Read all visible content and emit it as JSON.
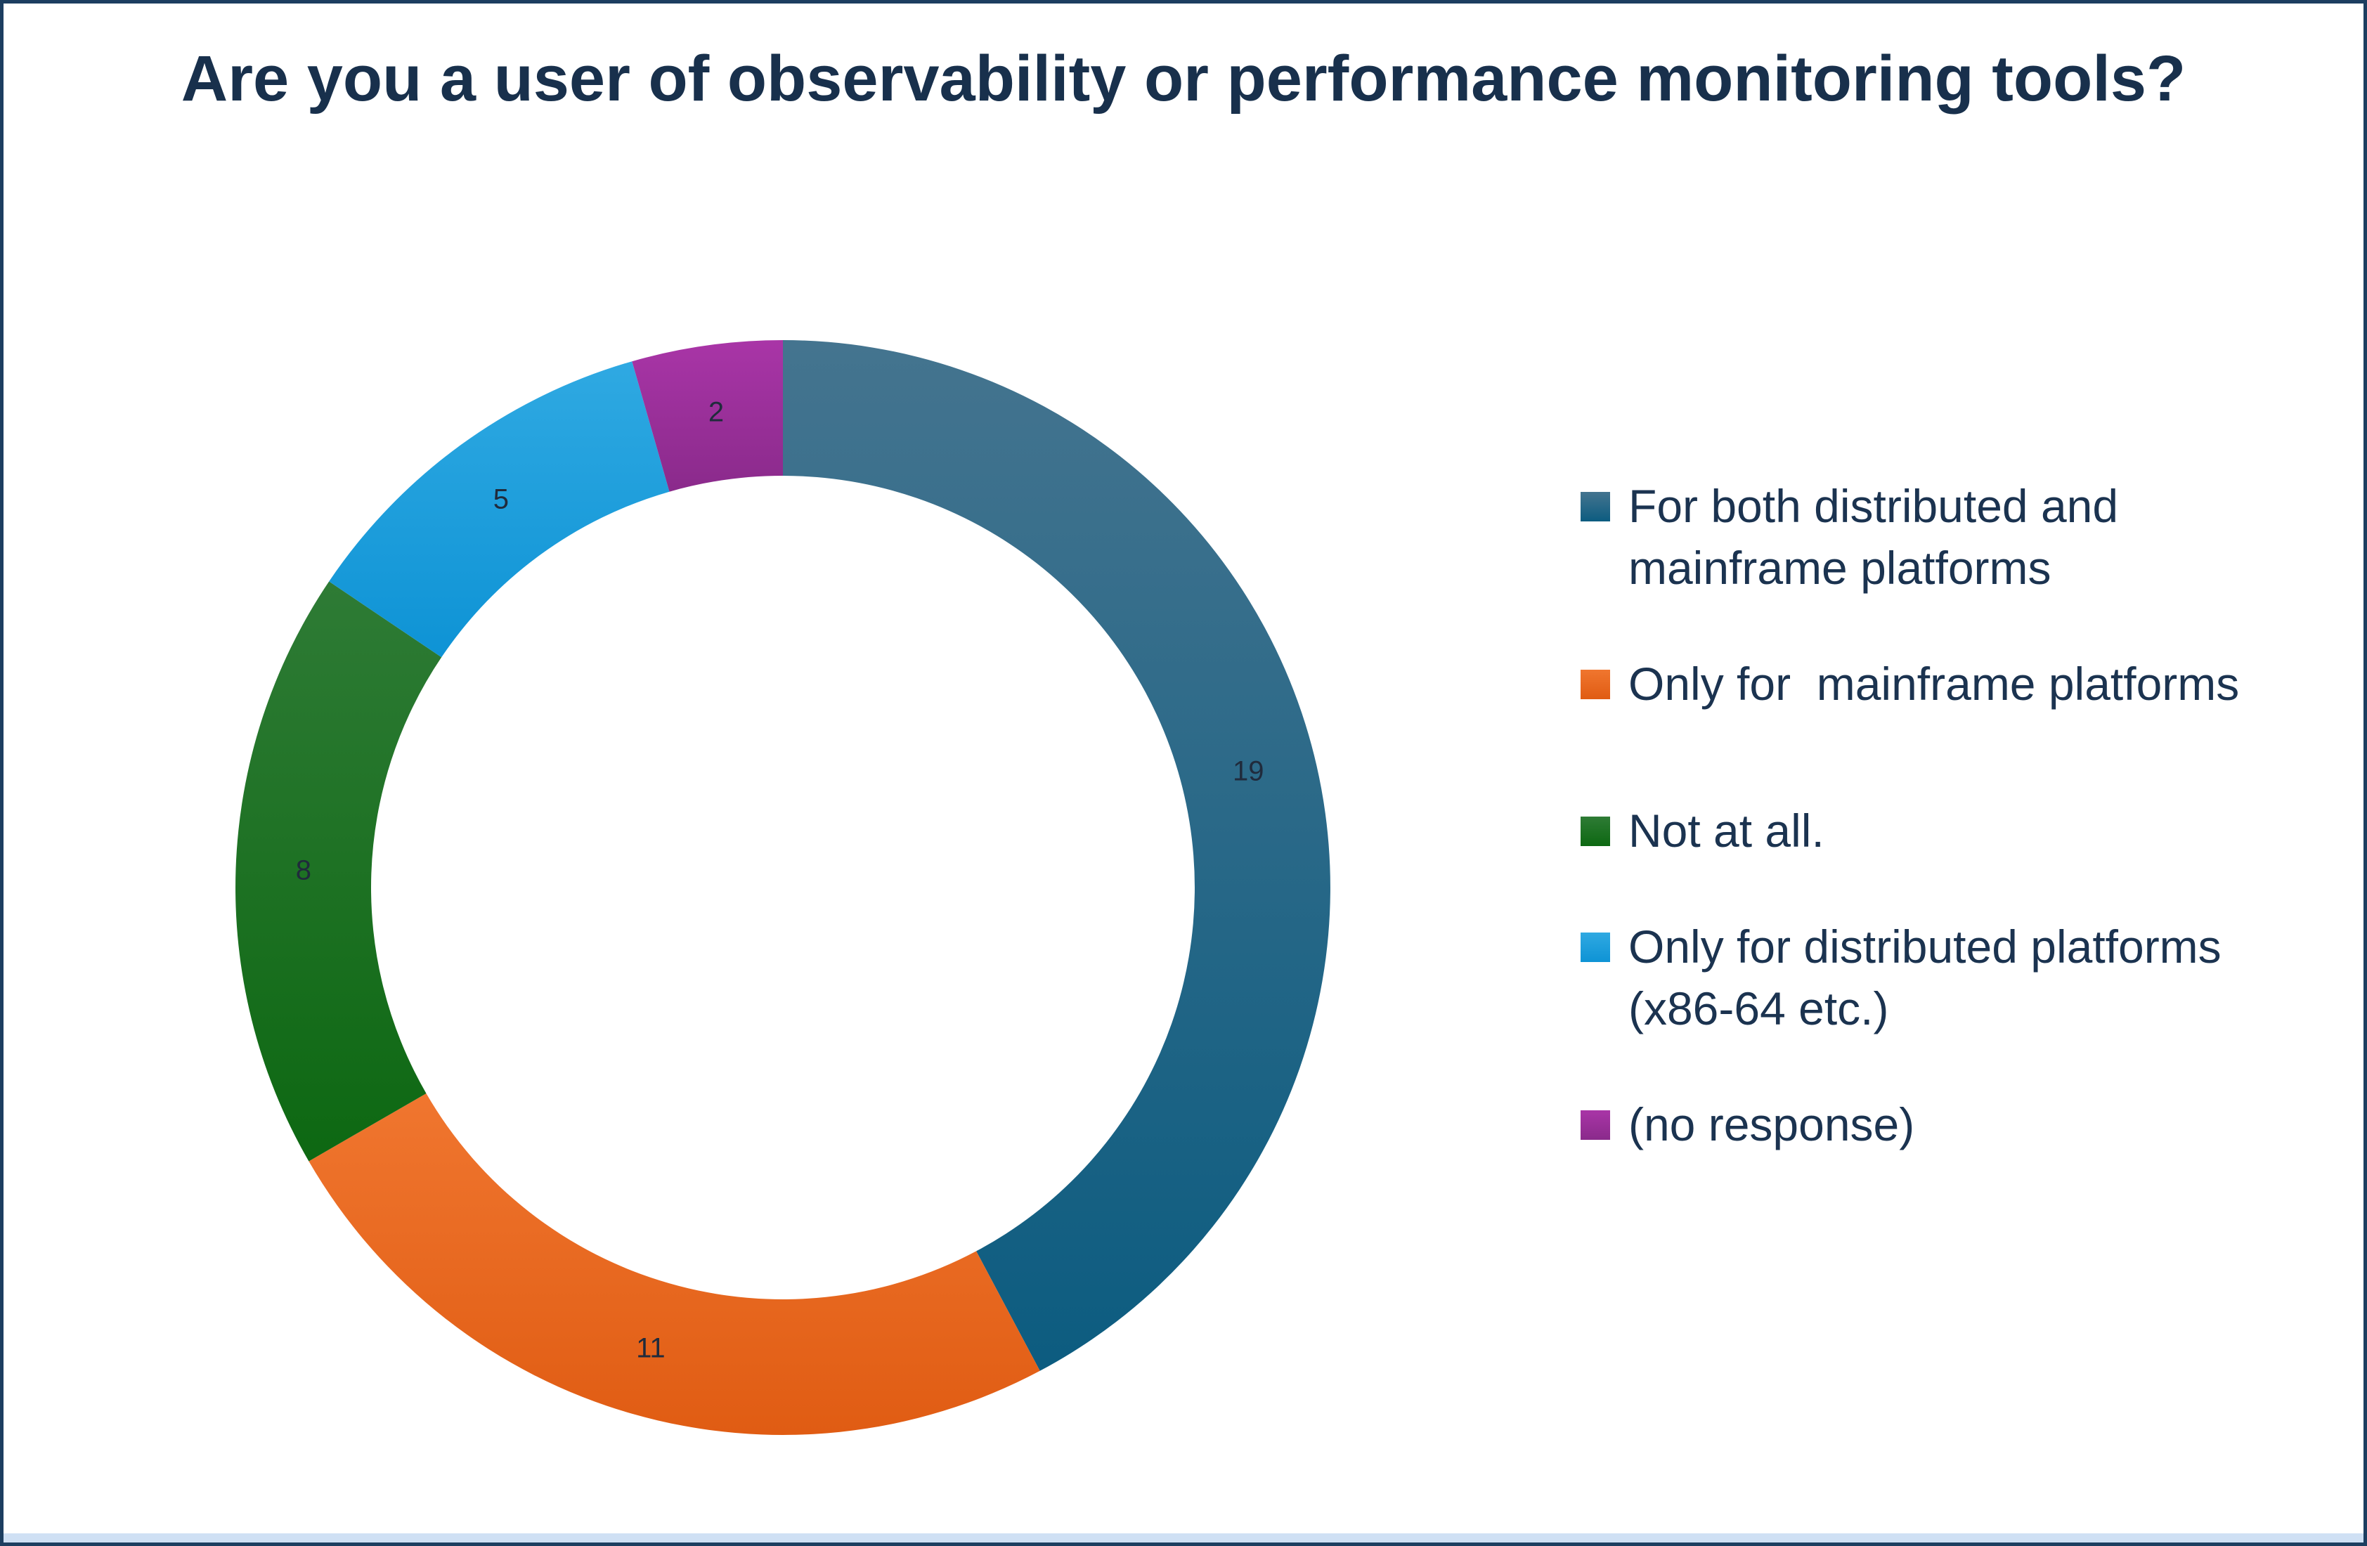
{
  "frame": {
    "border_color": "#1d3e60",
    "background": "#ffffff",
    "bottom_strip_color": "#cfe0f4"
  },
  "title": {
    "color": "#18304c"
  },
  "legend": {
    "text_color": "#1b3350",
    "position": "right"
  },
  "chart_data": {
    "type": "pie",
    "subtype": "donut",
    "title": "Are you a user of observability or performance monitoring tools?",
    "legend_position": "right",
    "data_labels_shown": true,
    "data_label_color": "#202b3c",
    "start_angle_deg": 0,
    "direction": "clockwise",
    "inner_radius_ratio": 0.752,
    "total": 45,
    "segments": [
      {
        "label": "For both distributed and mainframe platforms",
        "value": 19,
        "color_top": "#44748f",
        "color_bottom": "#0c5c80"
      },
      {
        "label": "Only for  mainframe platforms",
        "value": 11,
        "color_top": "#f0762f",
        "color_bottom": "#e05c13"
      },
      {
        "label": "Not at all.",
        "value": 8,
        "color_top": "#2e7b35",
        "color_bottom": "#0d6812"
      },
      {
        "label": "Only for distributed platforms (x86-64 etc.)",
        "value": 5,
        "color_top": "#2fa9e2",
        "color_bottom": "#0e93d5"
      },
      {
        "label": "(no response)",
        "value": 2,
        "color_top": "#a935a7",
        "color_bottom": "#8a2a8b"
      }
    ]
  }
}
